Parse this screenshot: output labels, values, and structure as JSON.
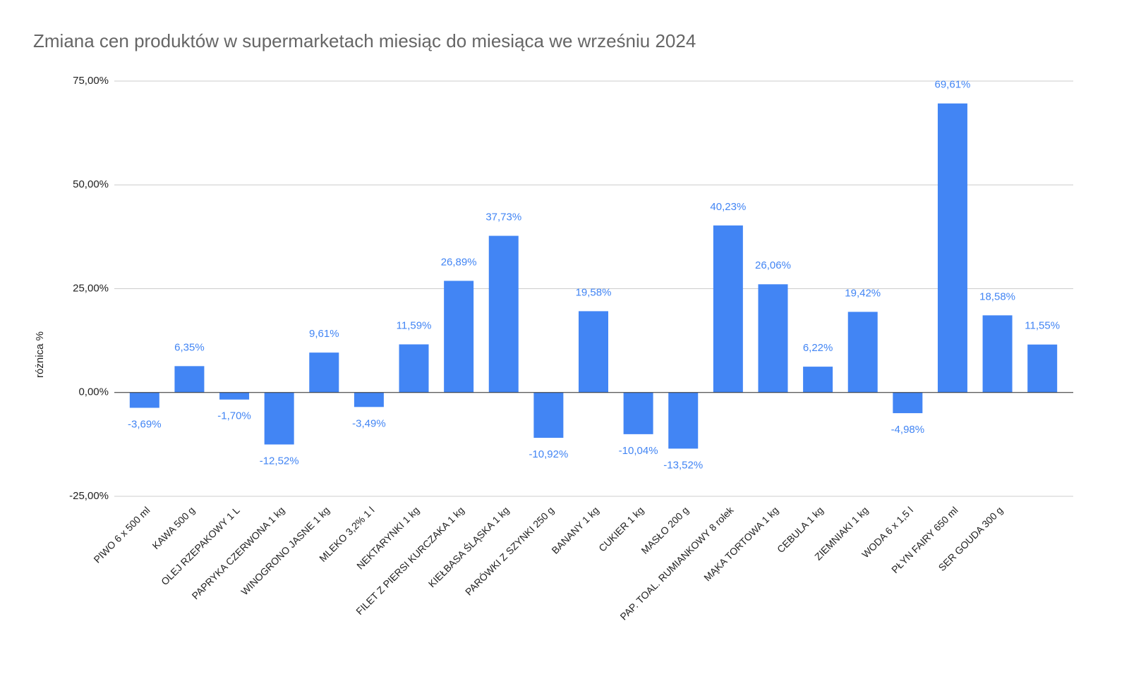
{
  "chart_data": {
    "type": "bar",
    "title": "Zmiana cen produktów w supermarketach miesiąc do miesiąca we wrześniu 2024",
    "y_label": "różnica %",
    "categories": [
      "PIWO 6 x 500 ml",
      "KAWA 500 g",
      "OLEJ RZEPAKOWY 1 L",
      "PAPRYKA CZERWONA 1 kg",
      "WINOGRONO JASNE 1 kg",
      "MLEKO 3,2% 1 l",
      "NEKTARYNKI 1 kg",
      "FILET Z PIERSI KURCZAKA 1 kg",
      "KIEŁBASA ŚLĄSKA 1 kg",
      "PARÓWKI Z SZYNKI 250 g",
      "BANANY 1 kg",
      "CUKIER 1 kg",
      "MASŁO 200 g",
      "PAP. TOAL. RUMIANKOWY 8 rolek",
      "MĄKA TORTOWA 1 kg",
      "CEBULA 1 kg",
      "ZIEMNIAKI 1 kg",
      "WODA 6 x 1,5 l",
      "PŁYN FAIRY 650 ml",
      "SER GOUDA 300 g",
      null
    ],
    "values": [
      -3.69,
      6.35,
      -1.7,
      -12.52,
      9.61,
      -3.49,
      11.59,
      26.89,
      37.73,
      -10.92,
      19.58,
      -10.04,
      -13.52,
      40.23,
      26.06,
      6.22,
      19.42,
      -4.98,
      69.61,
      18.58,
      11.55
    ],
    "value_labels": [
      "-3,69%",
      "6,35%",
      "-1,70%",
      "-12,52%",
      "9,61%",
      "-3,49%",
      "11,59%",
      "26,89%",
      "37,73%",
      "-10,92%",
      "19,58%",
      "-10,04%",
      "-13,52%",
      "40,23%",
      "26,06%",
      "6,22%",
      "19,42%",
      "-4,98%",
      "69,61%",
      "18,58%",
      "11,55%"
    ],
    "color": "#4285f4",
    "ylim": [
      -25,
      75
    ],
    "yticks": [
      {
        "value": -25,
        "label": "-25,00%"
      },
      {
        "value": 0,
        "label": "0,00%"
      },
      {
        "value": 25,
        "label": "25,00%"
      },
      {
        "value": 50,
        "label": "50,00%"
      },
      {
        "value": 75,
        "label": "75,00%"
      }
    ],
    "grid": true
  }
}
